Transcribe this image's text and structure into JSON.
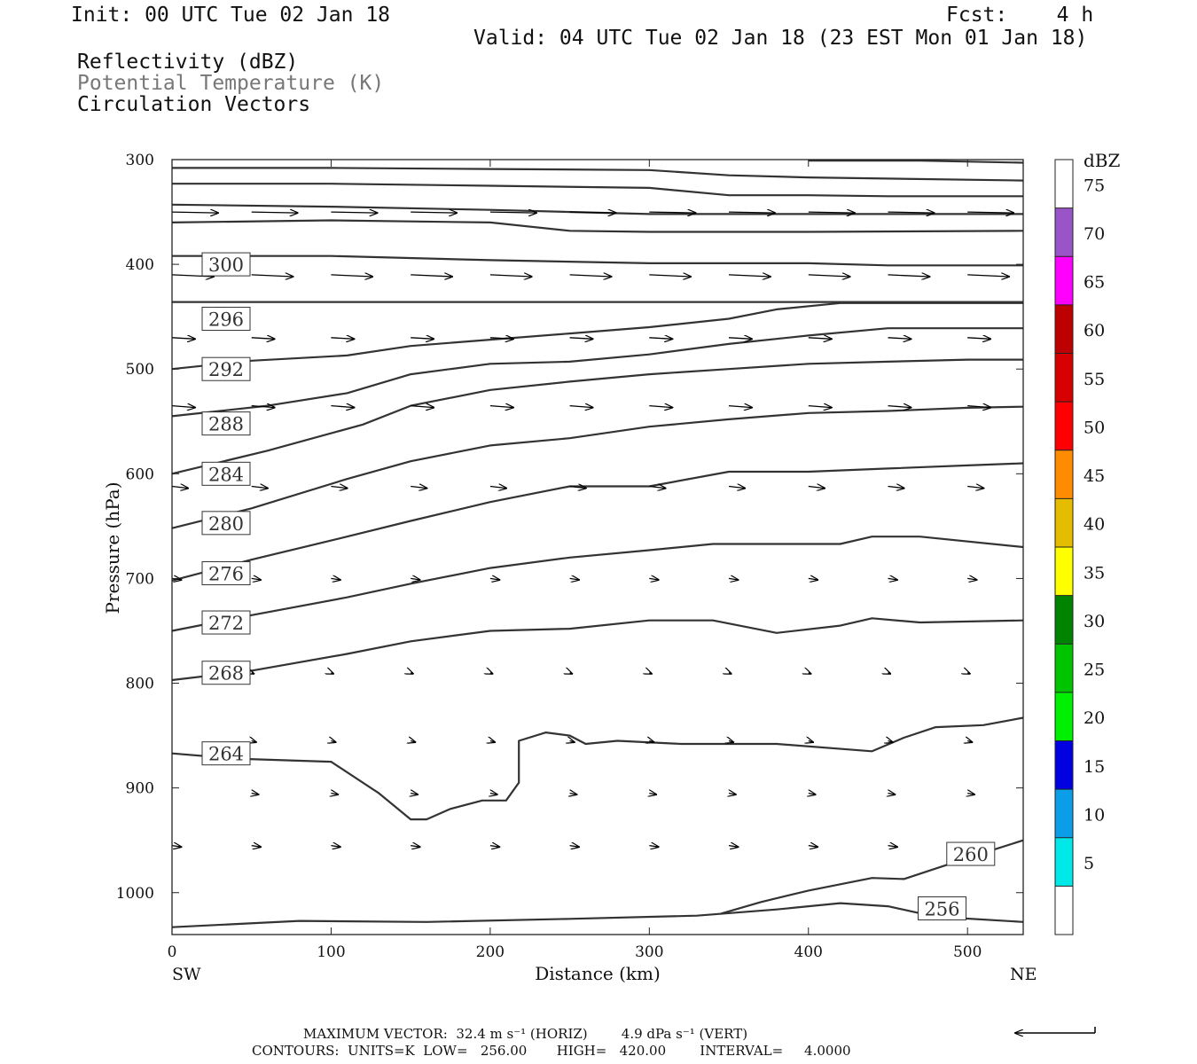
{
  "header": {
    "init": "Init: 00 UTC Tue 02 Jan 18",
    "fcst": "Fcst:    4 h",
    "valid": "Valid: 04 UTC Tue 02 Jan 18 (23 EST Mon 01 Jan 18)",
    "field1": "Reflectivity (dBZ)",
    "field2": "Potential Temperature (K)",
    "field3": "Circulation Vectors"
  },
  "footer": {
    "max_vector": "MAXIMUM VECTOR:  32.4 m s⁻¹ (HORIZ)        4.9 dPa s⁻¹ (VERT)",
    "contours": "CONTOURS:  UNITS=K  LOW=   256.00       HIGH=   420.00        INTERVAL=     4.0000"
  },
  "colorbar": {
    "title": "dBZ",
    "labels": [
      "5",
      "10",
      "15",
      "20",
      "25",
      "30",
      "35",
      "40",
      "45",
      "50",
      "55",
      "60",
      "65",
      "70",
      "75"
    ],
    "colors": [
      "#ffffff",
      "#00e8e8",
      "#0a9ee8",
      "#0000e0",
      "#00f000",
      "#00c400",
      "#008400",
      "#ffff00",
      "#e6bc00",
      "#ff8c00",
      "#ff0000",
      "#d60000",
      "#bd0000",
      "#ff00ff",
      "#9955c8",
      "#ffffff"
    ]
  },
  "chart_data": {
    "type": "contour",
    "title": "",
    "xlabel": "Distance (km)",
    "ylabel": "Pressure (hPa)",
    "xlim": [
      0,
      535
    ],
    "ylim": [
      300,
      1040
    ],
    "x_ticks": [
      "0",
      "100",
      "200",
      "300",
      "400",
      "500"
    ],
    "y_ticks": [
      "300",
      "400",
      "500",
      "600",
      "700",
      "800",
      "900",
      "1000"
    ],
    "x_end_labels": {
      "left": "SW",
      "right": "NE"
    },
    "isentropes": [
      {
        "label": "256",
        "label_at": [
          484,
          1015
        ],
        "points": [
          [
            0,
            1033
          ],
          [
            80,
            1027
          ],
          [
            160,
            1028
          ],
          [
            250,
            1025
          ],
          [
            330,
            1022
          ],
          [
            380,
            1016
          ],
          [
            420,
            1010
          ],
          [
            450,
            1013
          ],
          [
            480,
            1023
          ],
          [
            535,
            1028
          ]
        ]
      },
      {
        "label": "260",
        "label_at": [
          502,
          963
        ],
        "points": [
          [
            345,
            1020
          ],
          [
            370,
            1009
          ],
          [
            400,
            998
          ],
          [
            440,
            986
          ],
          [
            460,
            987
          ],
          [
            480,
            977
          ],
          [
            510,
            962
          ],
          [
            535,
            950
          ]
        ]
      },
      {
        "label": "264",
        "label_at": [
          34,
          867
        ],
        "points": [
          [
            0,
            867
          ],
          [
            40,
            872
          ],
          [
            100,
            875
          ],
          [
            130,
            905
          ],
          [
            150,
            930
          ],
          [
            160,
            930
          ],
          [
            175,
            920
          ],
          [
            195,
            912
          ],
          [
            210,
            912
          ],
          [
            218,
            895
          ],
          [
            218,
            855
          ],
          [
            235,
            847
          ],
          [
            250,
            850
          ],
          [
            260,
            858
          ],
          [
            280,
            855
          ],
          [
            320,
            858
          ],
          [
            380,
            858
          ],
          [
            440,
            865
          ],
          [
            460,
            852
          ],
          [
            480,
            842
          ],
          [
            510,
            840
          ],
          [
            535,
            833
          ]
        ]
      },
      {
        "label": "268",
        "label_at": [
          34,
          790
        ],
        "points": [
          [
            0,
            797
          ],
          [
            50,
            788
          ],
          [
            110,
            772
          ],
          [
            150,
            760
          ],
          [
            200,
            750
          ],
          [
            250,
            748
          ],
          [
            300,
            740
          ],
          [
            340,
            740
          ],
          [
            380,
            752
          ],
          [
            420,
            745
          ],
          [
            440,
            738
          ],
          [
            470,
            742
          ],
          [
            535,
            740
          ]
        ]
      },
      {
        "label": "272",
        "label_at": [
          34,
          742
        ],
        "points": [
          [
            0,
            750
          ],
          [
            50,
            735
          ],
          [
            110,
            718
          ],
          [
            150,
            705
          ],
          [
            200,
            690
          ],
          [
            250,
            680
          ],
          [
            300,
            673
          ],
          [
            340,
            667
          ],
          [
            380,
            667
          ],
          [
            420,
            667
          ],
          [
            440,
            660
          ],
          [
            470,
            660
          ],
          [
            535,
            670
          ]
        ]
      },
      {
        "label": "276",
        "label_at": [
          34,
          695
        ],
        "points": [
          [
            0,
            702
          ],
          [
            50,
            682
          ],
          [
            110,
            660
          ],
          [
            150,
            645
          ],
          [
            200,
            627
          ],
          [
            250,
            612
          ],
          [
            300,
            612
          ],
          [
            350,
            598
          ],
          [
            400,
            598
          ],
          [
            450,
            595
          ],
          [
            500,
            592
          ],
          [
            535,
            590
          ]
        ]
      },
      {
        "label": "280",
        "label_at": [
          34,
          647
        ],
        "points": [
          [
            0,
            652
          ],
          [
            50,
            633
          ],
          [
            110,
            605
          ],
          [
            150,
            588
          ],
          [
            200,
            573
          ],
          [
            250,
            566
          ],
          [
            300,
            555
          ],
          [
            350,
            548
          ],
          [
            400,
            542
          ],
          [
            450,
            540
          ],
          [
            500,
            537
          ],
          [
            535,
            536
          ]
        ]
      },
      {
        "label": "284",
        "label_at": [
          34,
          600
        ],
        "points": [
          [
            0,
            600
          ],
          [
            60,
            578
          ],
          [
            120,
            553
          ],
          [
            150,
            535
          ],
          [
            200,
            520
          ],
          [
            250,
            512
          ],
          [
            300,
            505
          ],
          [
            350,
            500
          ],
          [
            400,
            495
          ],
          [
            450,
            493
          ],
          [
            500,
            491
          ],
          [
            535,
            491
          ]
        ]
      },
      {
        "label": "288",
        "label_at": [
          34,
          552
        ],
        "points": [
          [
            0,
            545
          ],
          [
            60,
            535
          ],
          [
            110,
            523
          ],
          [
            150,
            505
          ],
          [
            200,
            495
          ],
          [
            250,
            493
          ],
          [
            300,
            486
          ],
          [
            350,
            476
          ],
          [
            400,
            468
          ],
          [
            450,
            461
          ],
          [
            535,
            461
          ]
        ]
      },
      {
        "label": "292",
        "label_at": [
          34,
          500
        ],
        "points": [
          [
            0,
            500
          ],
          [
            50,
            492
          ],
          [
            110,
            487
          ],
          [
            150,
            478
          ],
          [
            200,
            472
          ],
          [
            250,
            466
          ],
          [
            300,
            460
          ],
          [
            350,
            452
          ],
          [
            380,
            443
          ],
          [
            420,
            437
          ],
          [
            535,
            437
          ]
        ]
      },
      {
        "label": "296",
        "label_at": [
          34,
          452
        ],
        "points": [
          [
            0,
            436
          ],
          [
            100,
            436
          ],
          [
            200,
            436
          ],
          [
            300,
            436
          ],
          [
            400,
            436
          ],
          [
            535,
            436
          ]
        ]
      },
      {
        "label": "300",
        "label_at": [
          34,
          400
        ],
        "points": [
          [
            0,
            392
          ],
          [
            100,
            392
          ],
          [
            200,
            396
          ],
          [
            300,
            399
          ],
          [
            400,
            399
          ],
          [
            450,
            401
          ],
          [
            535,
            401
          ]
        ]
      },
      {
        "label": "",
        "points": [
          [
            0,
            360
          ],
          [
            100,
            358
          ],
          [
            200,
            360
          ],
          [
            250,
            368
          ],
          [
            300,
            369
          ],
          [
            400,
            369
          ],
          [
            535,
            368
          ]
        ]
      },
      {
        "label": "",
        "points": [
          [
            0,
            343
          ],
          [
            100,
            345
          ],
          [
            200,
            348
          ],
          [
            300,
            352
          ],
          [
            400,
            352
          ],
          [
            535,
            352
          ]
        ]
      },
      {
        "label": "",
        "points": [
          [
            0,
            323
          ],
          [
            100,
            323
          ],
          [
            200,
            325
          ],
          [
            300,
            327
          ],
          [
            350,
            334
          ],
          [
            400,
            334
          ],
          [
            450,
            335
          ],
          [
            535,
            335
          ]
        ]
      },
      {
        "label": "",
        "points": [
          [
            0,
            308
          ],
          [
            100,
            308
          ],
          [
            200,
            309
          ],
          [
            300,
            310
          ],
          [
            350,
            315
          ],
          [
            400,
            317
          ],
          [
            535,
            320
          ]
        ]
      },
      {
        "label": "",
        "points": [
          [
            400,
            301
          ],
          [
            470,
            301
          ],
          [
            535,
            303
          ]
        ]
      }
    ],
    "vectors": [
      {
        "p": 350,
        "xs": [
          0,
          50,
          100,
          150,
          200,
          250,
          300,
          350,
          400,
          450,
          500
        ],
        "u": 1.0,
        "w": 0.02
      },
      {
        "p": 410,
        "xs": [
          0,
          50,
          100,
          150,
          200,
          250,
          300,
          350,
          400,
          450,
          500
        ],
        "u": 0.9,
        "w": 0.04
      },
      {
        "p": 470,
        "xs": [
          0,
          50,
          100,
          150,
          200,
          250,
          300,
          350,
          400,
          450,
          500
        ],
        "u": 0.5,
        "w": 0.03
      },
      {
        "p": 535,
        "xs": [
          0,
          50,
          100,
          150,
          200,
          250,
          300,
          350,
          400,
          450,
          500
        ],
        "u": 0.5,
        "w": 0.04
      },
      {
        "p": 612,
        "xs": [
          0,
          50,
          100,
          150,
          200,
          250,
          300,
          350,
          400,
          450,
          500
        ],
        "u": 0.35,
        "w": 0.04
      },
      {
        "p": 700,
        "xs": [
          0,
          50,
          100,
          150,
          200,
          250,
          300,
          350,
          400,
          450,
          500
        ],
        "u": 0.2,
        "w": 0.03
      },
      {
        "p": 790,
        "xs": [
          50,
          100,
          150,
          200,
          250,
          300,
          350,
          400,
          450,
          500
        ],
        "u": 0.05,
        "w": 0.02
      },
      {
        "p": 855,
        "xs": [
          50,
          100,
          150,
          200,
          250,
          300,
          350,
          400,
          450,
          500
        ],
        "u": 0.1,
        "w": 0.03
      },
      {
        "p": 905,
        "xs": [
          50,
          100,
          150,
          200,
          250,
          300,
          350,
          400,
          450,
          500
        ],
        "u": 0.15,
        "w": 0.03
      },
      {
        "p": 955,
        "xs": [
          0,
          50,
          100,
          150,
          200,
          250,
          300,
          350,
          400,
          450
        ],
        "u": 0.2,
        "w": 0.03
      }
    ]
  }
}
